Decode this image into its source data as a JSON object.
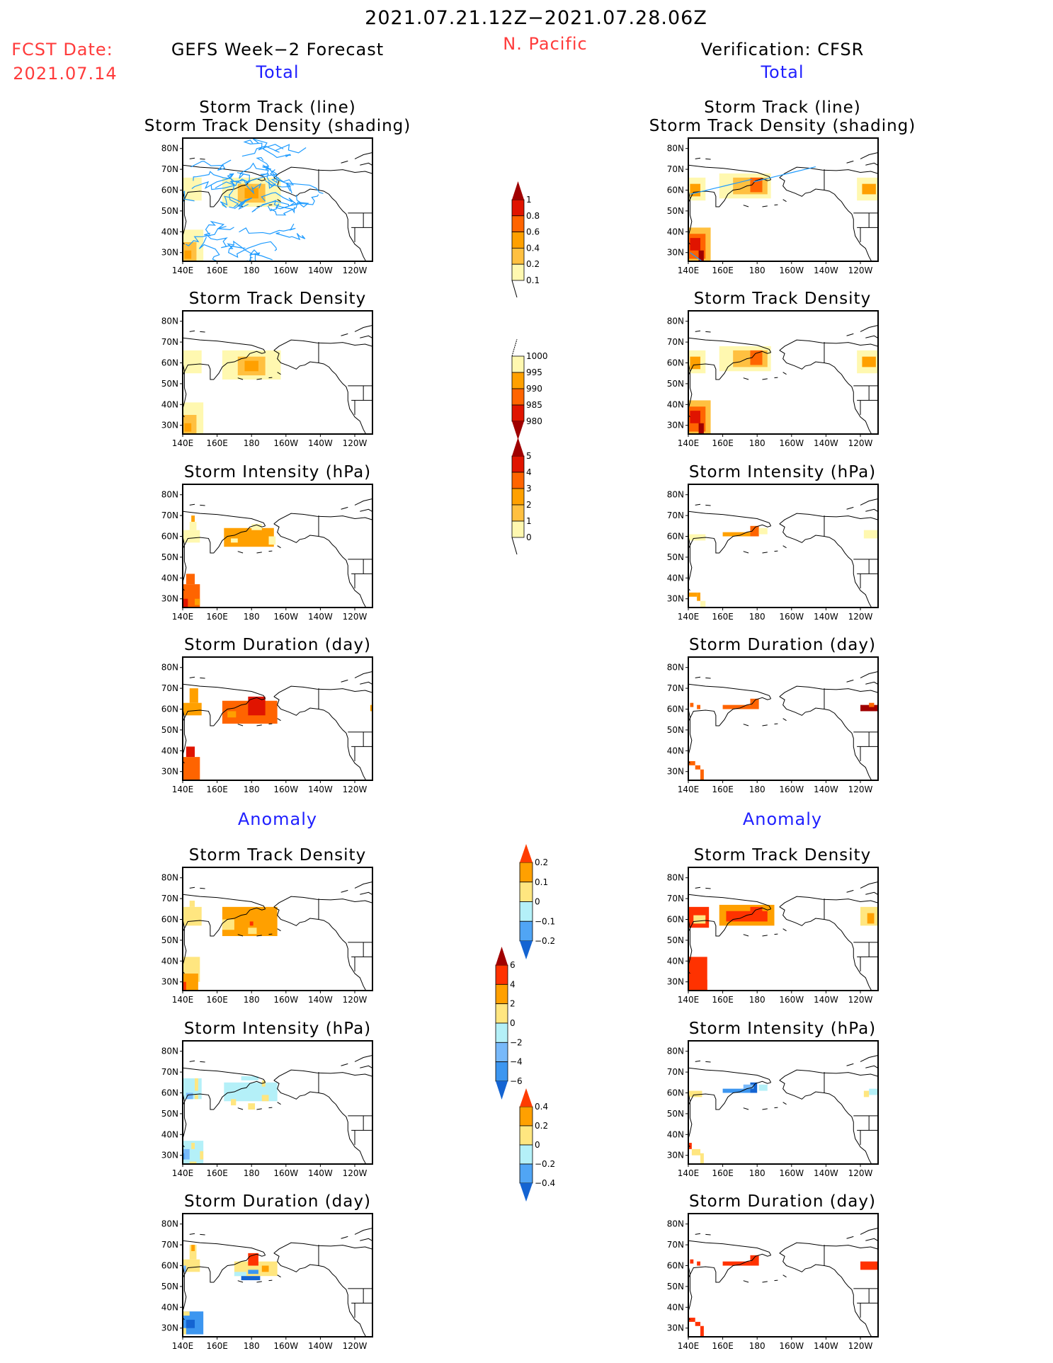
{
  "header": {
    "date_range": "2021.07.21.12Z−2021.07.28.06Z",
    "fcst_label": "FCST Date:",
    "fcst_date": "2021.07.14",
    "region": "N. Pacific",
    "left_title": "GEFS Week−2 Forecast",
    "right_title": "Verification: CFSR",
    "left_subtitle": "Total",
    "right_subtitle": "Total",
    "left_anomaly": "Anomaly",
    "right_anomaly": "Anomaly"
  },
  "panels": {
    "track_title1": "Storm Track (line)",
    "track_title2": "Storm Track Density (shading)",
    "density": "Storm Track Density",
    "intensity": "Storm Intensity (hPa)",
    "duration": "Storm Duration (day)"
  },
  "axes": {
    "lat_ticks": [
      "80N",
      "70N",
      "60N",
      "50N",
      "40N",
      "30N"
    ],
    "lat_values": [
      80,
      70,
      60,
      50,
      40,
      30
    ],
    "lon_ticks": [
      "140E",
      "160E",
      "180",
      "160W",
      "140W",
      "120W"
    ],
    "lon_values": [
      140,
      160,
      180,
      200,
      220,
      240
    ]
  },
  "colors": {
    "track_line": "#1e9bff",
    "coast": "#000000",
    "red": "#ff3b3b",
    "blue": "#2020ff"
  },
  "chart_data": [
    {
      "type": "heatmap",
      "name": "colorbar-density-total",
      "labels": [
        "1",
        "0.8",
        "0.6",
        "0.4",
        "0.2",
        "0.1"
      ],
      "colors": [
        "#a00000",
        "#e01400",
        "#ff6400",
        "#ffa000",
        "#ffc040",
        "#fff8b0"
      ],
      "top": "triangle",
      "bottom": "tail"
    },
    {
      "type": "heatmap",
      "name": "colorbar-intensity-total",
      "labels": [
        "1000",
        "995",
        "990",
        "985",
        "980"
      ],
      "colors": [
        "#fff8b0",
        "#ffa000",
        "#ff6400",
        "#e01400",
        "#a00000"
      ],
      "top": "tail",
      "bottom": "triangle"
    },
    {
      "type": "heatmap",
      "name": "colorbar-duration-total",
      "labels": [
        "5",
        "4",
        "3",
        "2",
        "1",
        "0"
      ],
      "colors": [
        "#a00000",
        "#e01400",
        "#ff6400",
        "#ffa000",
        "#ffc040",
        "#fff8b0"
      ],
      "top": "triangle",
      "bottom": "tail"
    },
    {
      "type": "heatmap",
      "name": "colorbar-density-anomaly",
      "labels": [
        "0.2",
        "0.1",
        "0",
        "−0.1",
        "−0.2"
      ],
      "colors": [
        "#ff3c00",
        "#ffa000",
        "#ffe680",
        "#b4f0f8",
        "#50a5f5",
        "#1464d2"
      ],
      "top": "triangle",
      "bottom": "triangle"
    },
    {
      "type": "heatmap",
      "name": "colorbar-intensity-anomaly",
      "labels": [
        "6",
        "4",
        "2",
        "0",
        "−2",
        "−4",
        "−6"
      ],
      "colors": [
        "#a00000",
        "#ff3200",
        "#ffa000",
        "#ffe680",
        "#b4f0f8",
        "#78b9fa",
        "#3c96f0",
        "#1464d2"
      ],
      "top": "triangle",
      "bottom": "triangle"
    },
    {
      "type": "heatmap",
      "name": "colorbar-duration-anomaly",
      "labels": [
        "0.4",
        "0.2",
        "0",
        "−0.2",
        "−0.4"
      ],
      "colors": [
        "#ff3c00",
        "#ffa000",
        "#ffe680",
        "#b4f0f8",
        "#50a5f5",
        "#1464d2"
      ],
      "top": "triangle",
      "bottom": "triangle"
    }
  ]
}
